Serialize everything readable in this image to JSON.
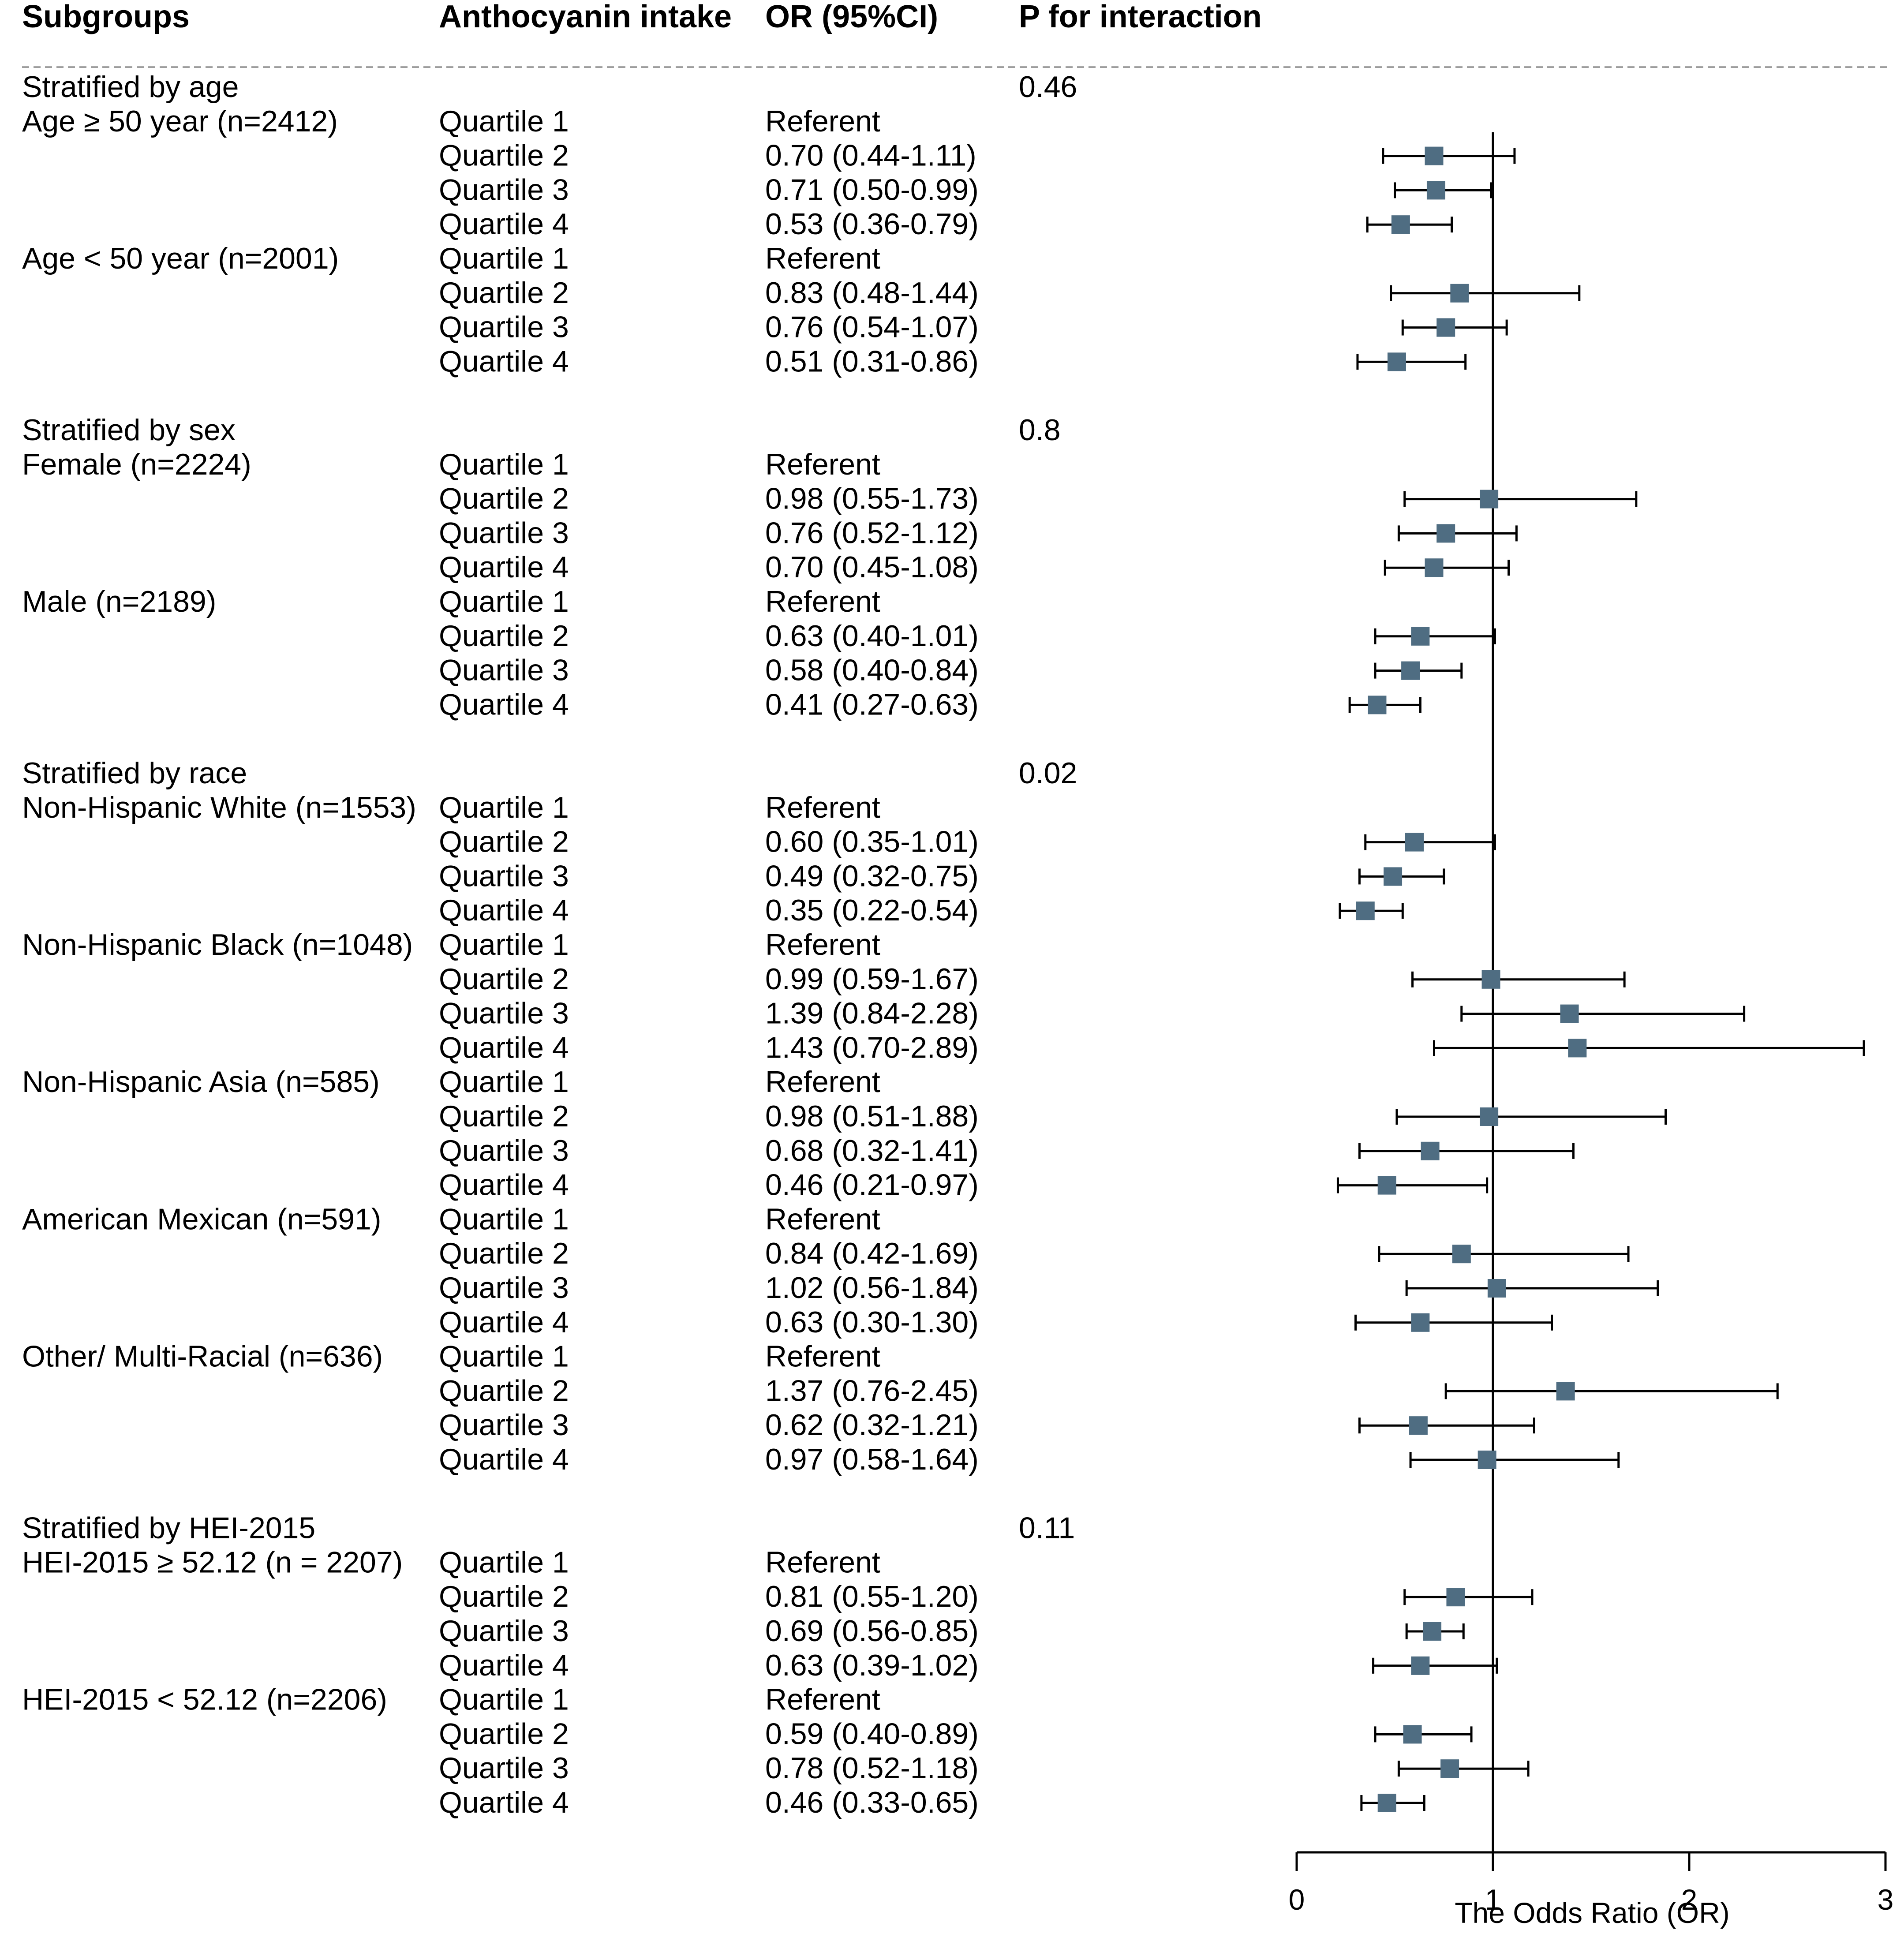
{
  "chart_data": {
    "type": "forest",
    "headers": {
      "subgroups": "Subgroups",
      "intake": "Anthocyanin intake",
      "or": "OR (95%CI)",
      "p": "P for interaction"
    },
    "xlabel": "The Odds Ratio (OR)",
    "xlim": [
      0,
      3
    ],
    "xticks": [
      "0",
      "1",
      "2",
      "3"
    ],
    "reference_line": 1,
    "marker_color": "#4f6d82",
    "rows": [
      {
        "kind": "strat",
        "label": "Stratified by age",
        "p": "0.46"
      },
      {
        "kind": "data",
        "group": "Age ≥ 50 year (n=2412)",
        "q": "Quartile 1",
        "or_text": "Referent"
      },
      {
        "kind": "data",
        "q": "Quartile 2",
        "or_text": "0.70 (0.44-1.11)",
        "or": 0.7,
        "lo": 0.44,
        "hi": 1.11
      },
      {
        "kind": "data",
        "q": "Quartile 3",
        "or_text": "0.71 (0.50-0.99)",
        "or": 0.71,
        "lo": 0.5,
        "hi": 0.99
      },
      {
        "kind": "data",
        "q": "Quartile 4",
        "or_text": "0.53 (0.36-0.79)",
        "or": 0.53,
        "lo": 0.36,
        "hi": 0.79
      },
      {
        "kind": "data",
        "group": "Age < 50 year (n=2001)",
        "q": "Quartile 1",
        "or_text": "Referent"
      },
      {
        "kind": "data",
        "q": "Quartile 2",
        "or_text": "0.83 (0.48-1.44)",
        "or": 0.83,
        "lo": 0.48,
        "hi": 1.44
      },
      {
        "kind": "data",
        "q": "Quartile 3",
        "or_text": "0.76 (0.54-1.07)",
        "or": 0.76,
        "lo": 0.54,
        "hi": 1.07
      },
      {
        "kind": "data",
        "q": "Quartile 4",
        "or_text": "0.51 (0.31-0.86)",
        "or": 0.51,
        "lo": 0.31,
        "hi": 0.86
      },
      {
        "kind": "gap"
      },
      {
        "kind": "strat",
        "label": "Stratified by sex",
        "p": "0.8"
      },
      {
        "kind": "data",
        "group": "Female (n=2224)",
        "q": "Quartile 1",
        "or_text": "Referent"
      },
      {
        "kind": "data",
        "q": "Quartile 2",
        "or_text": "0.98 (0.55-1.73)",
        "or": 0.98,
        "lo": 0.55,
        "hi": 1.73
      },
      {
        "kind": "data",
        "q": "Quartile 3",
        "or_text": "0.76 (0.52-1.12)",
        "or": 0.76,
        "lo": 0.52,
        "hi": 1.12
      },
      {
        "kind": "data",
        "q": "Quartile 4",
        "or_text": "0.70 (0.45-1.08)",
        "or": 0.7,
        "lo": 0.45,
        "hi": 1.08
      },
      {
        "kind": "data",
        "group": "Male (n=2189)",
        "q": "Quartile 1",
        "or_text": "Referent"
      },
      {
        "kind": "data",
        "q": "Quartile 2",
        "or_text": "0.63 (0.40-1.01)",
        "or": 0.63,
        "lo": 0.4,
        "hi": 1.01
      },
      {
        "kind": "data",
        "q": "Quartile 3",
        "or_text": "0.58 (0.40-0.84)",
        "or": 0.58,
        "lo": 0.4,
        "hi": 0.84
      },
      {
        "kind": "data",
        "q": "Quartile 4",
        "or_text": "0.41 (0.27-0.63)",
        "or": 0.41,
        "lo": 0.27,
        "hi": 0.63
      },
      {
        "kind": "gap"
      },
      {
        "kind": "strat",
        "label": "Stratified by race",
        "p": "0.02"
      },
      {
        "kind": "data",
        "group": "Non-Hispanic White (n=1553)",
        "q": "Quartile 1",
        "or_text": "Referent"
      },
      {
        "kind": "data",
        "q": "Quartile 2",
        "or_text": "0.60 (0.35-1.01)",
        "or": 0.6,
        "lo": 0.35,
        "hi": 1.01
      },
      {
        "kind": "data",
        "q": "Quartile 3",
        "or_text": "0.49 (0.32-0.75)",
        "or": 0.49,
        "lo": 0.32,
        "hi": 0.75
      },
      {
        "kind": "data",
        "q": "Quartile 4",
        "or_text": "0.35 (0.22-0.54)",
        "or": 0.35,
        "lo": 0.22,
        "hi": 0.54
      },
      {
        "kind": "data",
        "group": "Non-Hispanic Black (n=1048)",
        "q": "Quartile 1",
        "or_text": "Referent"
      },
      {
        "kind": "data",
        "q": "Quartile 2",
        "or_text": "0.99 (0.59-1.67)",
        "or": 0.99,
        "lo": 0.59,
        "hi": 1.67
      },
      {
        "kind": "data",
        "q": "Quartile 3",
        "or_text": "1.39 (0.84-2.28)",
        "or": 1.39,
        "lo": 0.84,
        "hi": 2.28
      },
      {
        "kind": "data",
        "q": "Quartile 4",
        "or_text": "1.43 (0.70-2.89)",
        "or": 1.43,
        "lo": 0.7,
        "hi": 2.89
      },
      {
        "kind": "data",
        "group": "Non-Hispanic Asia (n=585)",
        "q": "Quartile 1",
        "or_text": "Referent"
      },
      {
        "kind": "data",
        "q": "Quartile 2",
        "or_text": "0.98 (0.51-1.88)",
        "or": 0.98,
        "lo": 0.51,
        "hi": 1.88
      },
      {
        "kind": "data",
        "q": "Quartile 3",
        "or_text": "0.68 (0.32-1.41)",
        "or": 0.68,
        "lo": 0.32,
        "hi": 1.41
      },
      {
        "kind": "data",
        "q": "Quartile 4",
        "or_text": "0.46 (0.21-0.97)",
        "or": 0.46,
        "lo": 0.21,
        "hi": 0.97
      },
      {
        "kind": "data",
        "group": "American Mexican (n=591)",
        "q": "Quartile 1",
        "or_text": "Referent"
      },
      {
        "kind": "data",
        "q": "Quartile 2",
        "or_text": "0.84 (0.42-1.69)",
        "or": 0.84,
        "lo": 0.42,
        "hi": 1.69
      },
      {
        "kind": "data",
        "q": "Quartile 3",
        "or_text": "1.02 (0.56-1.84)",
        "or": 1.02,
        "lo": 0.56,
        "hi": 1.84
      },
      {
        "kind": "data",
        "q": "Quartile 4",
        "or_text": "0.63 (0.30-1.30)",
        "or": 0.63,
        "lo": 0.3,
        "hi": 1.3
      },
      {
        "kind": "data",
        "group": "Other/ Multi-Racial (n=636)",
        "q": "Quartile 1",
        "or_text": "Referent"
      },
      {
        "kind": "data",
        "q": "Quartile 2",
        "or_text": "1.37 (0.76-2.45)",
        "or": 1.37,
        "lo": 0.76,
        "hi": 2.45
      },
      {
        "kind": "data",
        "q": "Quartile 3",
        "or_text": "0.62 (0.32-1.21)",
        "or": 0.62,
        "lo": 0.32,
        "hi": 1.21
      },
      {
        "kind": "data",
        "q": "Quartile 4",
        "or_text": "0.97 (0.58-1.64)",
        "or": 0.97,
        "lo": 0.58,
        "hi": 1.64
      },
      {
        "kind": "gap"
      },
      {
        "kind": "strat",
        "label": "Stratified by HEI-2015",
        "p": "0.11"
      },
      {
        "kind": "data",
        "group": "HEI-2015 ≥ 52.12 (n = 2207)",
        "q": "Quartile 1",
        "or_text": "Referent"
      },
      {
        "kind": "data",
        "q": "Quartile 2",
        "or_text": "0.81 (0.55-1.20)",
        "or": 0.81,
        "lo": 0.55,
        "hi": 1.2
      },
      {
        "kind": "data",
        "q": "Quartile 3",
        "or_text": "0.69 (0.56-0.85)",
        "or": 0.69,
        "lo": 0.56,
        "hi": 0.85
      },
      {
        "kind": "data",
        "q": "Quartile 4",
        "or_text": "0.63 (0.39-1.02)",
        "or": 0.63,
        "lo": 0.39,
        "hi": 1.02
      },
      {
        "kind": "data",
        "group": "HEI-2015 < 52.12 (n=2206)",
        "q": "Quartile 1",
        "or_text": "Referent"
      },
      {
        "kind": "data",
        "q": "Quartile 2",
        "or_text": "0.59 (0.40-0.89)",
        "or": 0.59,
        "lo": 0.4,
        "hi": 0.89
      },
      {
        "kind": "data",
        "q": "Quartile 3",
        "or_text": "0.78 (0.52-1.18)",
        "or": 0.78,
        "lo": 0.52,
        "hi": 1.18
      },
      {
        "kind": "data",
        "q": "Quartile 4",
        "or_text": "0.46 (0.33-0.65)",
        "or": 0.46,
        "lo": 0.33,
        "hi": 0.65
      }
    ]
  }
}
